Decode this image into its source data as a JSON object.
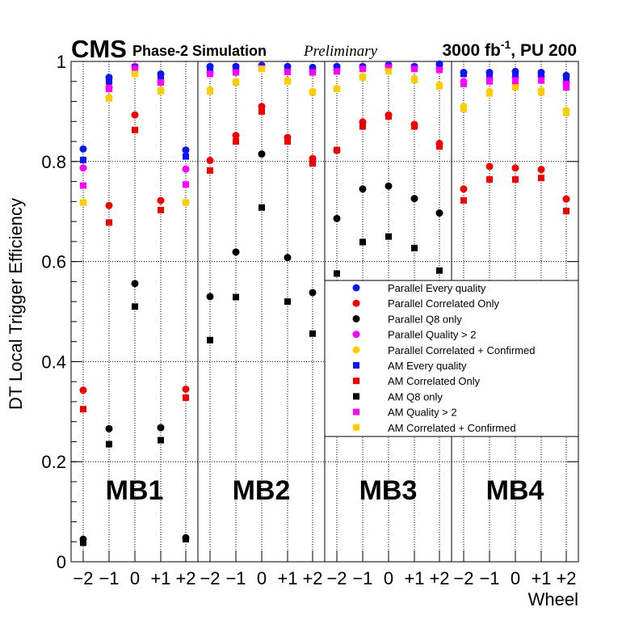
{
  "header": {
    "experiment": "CMS",
    "subtitle": "Phase-2 Simulation",
    "status": "Preliminary",
    "lumi_value": "3000 fb",
    "lumi_exp": "-1",
    "lumi_rest": ", PU 200"
  },
  "colors": {
    "blue": "#0a14f5",
    "red": "#f00000",
    "black": "#000000",
    "magenta": "#ff00ff",
    "gold": "#ffcc00"
  },
  "chart_data": {
    "type": "scatter",
    "title": "CMS Phase-2 Simulation Preliminary 3000 fb-1, PU 200",
    "xlabel": "Wheel",
    "ylabel": "DT Local Trigger Efficiency",
    "ylim": [
      0,
      1
    ],
    "yticks": [
      "0",
      "0.2",
      "0.4",
      "0.6",
      "0.8",
      "1"
    ],
    "ytick_values": [
      0,
      0.2,
      0.4,
      0.6,
      0.8,
      1
    ],
    "stations": [
      "MB1",
      "MB2",
      "MB3",
      "MB4"
    ],
    "wheel_ticks": [
      "−2",
      "−1",
      "0",
      "+1",
      "+2"
    ],
    "legend_position": "center-right",
    "series": [
      {
        "name": "Parallel Every quality",
        "marker": "circle",
        "color": "blue",
        "values": [
          [
            0.825,
            0.968,
            0.99,
            0.975,
            0.823
          ],
          [
            0.99,
            0.99,
            0.992,
            0.99,
            0.988
          ],
          [
            0.99,
            0.99,
            0.993,
            0.99,
            0.995
          ],
          [
            0.978,
            0.978,
            0.98,
            0.978,
            0.972
          ]
        ]
      },
      {
        "name": "Parallel Correlated Only",
        "marker": "circle",
        "color": "red",
        "values": [
          [
            0.343,
            0.712,
            0.893,
            0.722,
            0.345
          ],
          [
            0.802,
            0.852,
            0.91,
            0.848,
            0.806
          ],
          [
            0.822,
            0.879,
            0.893,
            0.874,
            0.836
          ],
          [
            0.745,
            0.79,
            0.787,
            0.784,
            0.725
          ]
        ]
      },
      {
        "name": "Parallel Q8 only",
        "marker": "circle",
        "color": "black",
        "values": [
          [
            0.045,
            0.266,
            0.556,
            0.268,
            0.048
          ],
          [
            0.53,
            0.619,
            0.815,
            0.608,
            0.538
          ],
          [
            0.686,
            0.745,
            0.751,
            0.726,
            0.697
          ],
          []
        ]
      },
      {
        "name": "Parallel Quality > 2",
        "marker": "circle",
        "color": "magenta",
        "values": [
          [
            0.787,
            0.948,
            0.99,
            0.96,
            0.785
          ],
          [
            0.978,
            0.982,
            0.99,
            0.983,
            0.982
          ],
          [
            0.983,
            0.988,
            0.991,
            0.988,
            0.986
          ],
          [
            0.96,
            0.965,
            0.968,
            0.97,
            0.958
          ]
        ]
      },
      {
        "name": "Parallel Correlated + Confirmed",
        "marker": "circle",
        "color": "gold",
        "values": [
          [
            0.718,
            0.928,
            0.978,
            0.943,
            0.718
          ],
          [
            0.943,
            0.96,
            0.988,
            0.962,
            0.94
          ],
          [
            0.946,
            0.97,
            0.983,
            0.966,
            0.953
          ],
          [
            0.91,
            0.94,
            0.952,
            0.942,
            0.902
          ]
        ]
      },
      {
        "name": "AM Every quality",
        "marker": "square",
        "color": "blue",
        "values": [
          [
            0.803,
            0.96,
            0.988,
            0.97,
            0.81
          ],
          [
            0.985,
            0.988,
            0.99,
            0.986,
            0.983
          ],
          [
            0.988,
            0.988,
            0.99,
            0.988,
            0.992
          ],
          [
            0.975,
            0.975,
            0.975,
            0.975,
            0.968
          ]
        ]
      },
      {
        "name": "AM Correlated Only",
        "marker": "square",
        "color": "red",
        "values": [
          [
            0.305,
            0.678,
            0.863,
            0.703,
            0.328
          ],
          [
            0.782,
            0.84,
            0.9,
            0.84,
            0.796
          ],
          [
            0.823,
            0.87,
            0.89,
            0.87,
            0.83
          ],
          [
            0.722,
            0.764,
            0.764,
            0.767,
            0.701
          ]
        ]
      },
      {
        "name": "AM Q8 only",
        "marker": "square",
        "color": "black",
        "values": [
          [
            0.038,
            0.235,
            0.51,
            0.243,
            0.045
          ],
          [
            0.443,
            0.529,
            0.708,
            0.52,
            0.456
          ],
          [
            0.576,
            0.639,
            0.65,
            0.627,
            0.582
          ],
          []
        ]
      },
      {
        "name": "AM Quality > 2",
        "marker": "square",
        "color": "magenta",
        "values": [
          [
            0.752,
            0.945,
            0.986,
            0.958,
            0.754
          ],
          [
            0.975,
            0.978,
            0.986,
            0.979,
            0.978
          ],
          [
            0.98,
            0.985,
            0.988,
            0.985,
            0.983
          ],
          [
            0.955,
            0.96,
            0.96,
            0.962,
            0.948
          ]
        ]
      },
      {
        "name": "AM Correlated + Confirmed",
        "marker": "square",
        "color": "gold",
        "values": [
          [
            0.718,
            0.926,
            0.975,
            0.94,
            0.718
          ],
          [
            0.94,
            0.958,
            0.985,
            0.96,
            0.938
          ],
          [
            0.945,
            0.968,
            0.98,
            0.963,
            0.95
          ],
          [
            0.905,
            0.936,
            0.948,
            0.938,
            0.897
          ]
        ]
      }
    ]
  }
}
